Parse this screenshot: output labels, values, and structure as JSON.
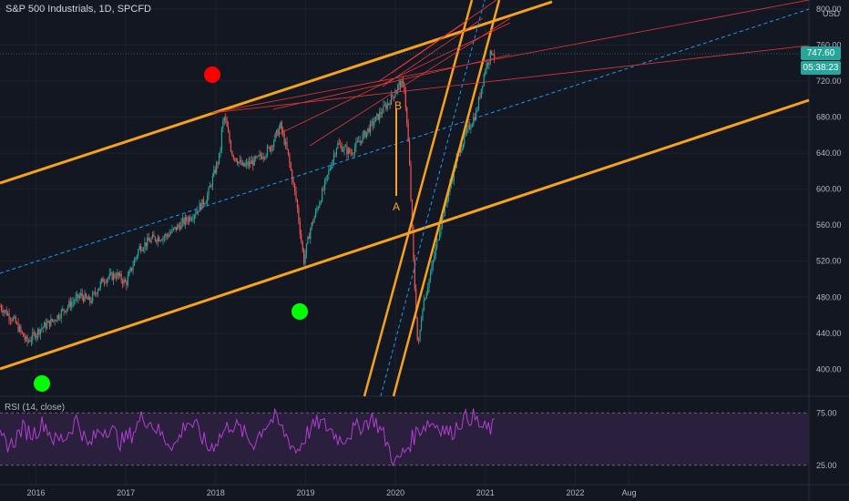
{
  "chart_title": "S&P 500 Industrials, 1D, SPCFD",
  "currency": "USD",
  "price_label": "747.60",
  "timer_label": "05:38:23",
  "rsi_title": "RSI (14, close)",
  "colors": {
    "background": "#131722",
    "channel": "#f7a21b",
    "redline": "#e53935",
    "midline": "#2196f3",
    "up_candle": "#26a69a",
    "down_candle": "#ef5350",
    "rsi_line": "#b23fd1",
    "rsi_band": "#2a1f3d",
    "grid": "#1e222d",
    "axis_text": "#b2b5be",
    "marker_red": "#ff0000",
    "marker_green": "#00ff00"
  },
  "annotations": {
    "a": "A",
    "b": "B"
  },
  "chart_data": {
    "type": "line",
    "xlabel": "",
    "ylabel": "",
    "x_ticks": [
      "2016",
      "2017",
      "2018",
      "2019",
      "2020",
      "2021",
      "2022",
      "Aug"
    ],
    "y_ticks": [
      400,
      440,
      480,
      520,
      560,
      600,
      640,
      680,
      720,
      760,
      800
    ],
    "ylim": [
      370,
      810
    ],
    "xlim": [
      2015.6,
      2024.6
    ],
    "series": [
      {
        "values": [
          [
            2015.6,
            470
          ],
          [
            2015.75,
            455
          ],
          [
            2015.9,
            430
          ],
          [
            2016.05,
            445
          ],
          [
            2016.2,
            455
          ],
          [
            2016.35,
            470
          ],
          [
            2016.5,
            482
          ],
          [
            2016.6,
            475
          ],
          [
            2016.75,
            500
          ],
          [
            2016.9,
            505
          ],
          [
            2017.0,
            495
          ],
          [
            2017.15,
            535
          ],
          [
            2017.3,
            545
          ],
          [
            2017.45,
            548
          ],
          [
            2017.6,
            560
          ],
          [
            2017.75,
            572
          ],
          [
            2017.9,
            590
          ],
          [
            2018.05,
            640
          ],
          [
            2018.07,
            670
          ],
          [
            2018.1,
            680
          ],
          [
            2018.18,
            640
          ],
          [
            2018.3,
            625
          ],
          [
            2018.45,
            632
          ],
          [
            2018.6,
            645
          ],
          [
            2018.72,
            670
          ],
          [
            2018.8,
            640
          ],
          [
            2018.9,
            585
          ],
          [
            2018.98,
            520
          ],
          [
            2019.05,
            555
          ],
          [
            2019.2,
            600
          ],
          [
            2019.35,
            650
          ],
          [
            2019.5,
            640
          ],
          [
            2019.65,
            660
          ],
          [
            2019.8,
            680
          ],
          [
            2019.95,
            700
          ],
          [
            2020.05,
            718
          ],
          [
            2020.1,
            712
          ],
          [
            2020.15,
            640
          ],
          [
            2020.2,
            520
          ],
          [
            2020.25,
            420
          ],
          [
            2020.3,
            470
          ],
          [
            2020.4,
            510
          ],
          [
            2020.5,
            560
          ],
          [
            2020.6,
            600
          ],
          [
            2020.7,
            640
          ],
          [
            2020.8,
            665
          ],
          [
            2020.9,
            685
          ],
          [
            2021.0,
            735
          ],
          [
            2021.08,
            755
          ],
          [
            2021.1,
            748
          ]
        ]
      }
    ],
    "rsi": {
      "values": [
        50,
        44,
        60,
        55,
        66,
        48,
        52,
        70,
        42,
        58,
        61,
        47,
        55,
        72,
        63,
        50,
        44,
        68,
        59,
        40,
        52,
        65,
        58,
        45,
        62,
        70,
        54,
        38,
        56,
        66,
        60,
        49,
        57,
        64,
        70,
        52,
        26,
        41,
        58,
        66,
        63,
        55,
        68,
        72,
        59,
        61
      ],
      "levels": [
        "75.00",
        "25.00"
      ],
      "ylim": [
        10,
        90
      ]
    }
  }
}
